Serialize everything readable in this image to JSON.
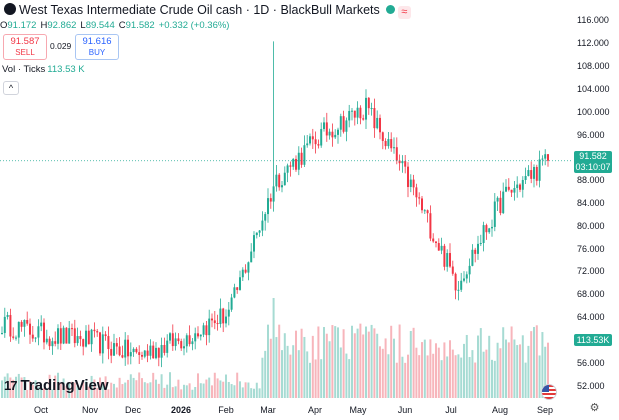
{
  "header": {
    "title": "West Texas Intermediate Crude Oil cash · 1D · BlackBull Markets",
    "wave_icon": "≈"
  },
  "ohlc": {
    "o_label": "O",
    "o": "91.172",
    "h_label": "H",
    "h": "92.862",
    "l_label": "L",
    "l": "89.544",
    "c_label": "C",
    "c": "91.582",
    "change": "+0.332 (+0.36%)"
  },
  "trade": {
    "sell_price": "91.587",
    "sell_label": "SELL",
    "spread": "0.029",
    "buy_price": "91.616",
    "buy_label": "BUY"
  },
  "volume": {
    "label": "Vol · Ticks",
    "value": "113.53 K"
  },
  "collapse_label": "^",
  "price_tag": {
    "price": "91.582",
    "countdown": "03:10:07"
  },
  "vol_tag": "113.53K",
  "brand": {
    "mark": "17",
    "name": "TradingView"
  },
  "settings_icon": "⚙",
  "colors": {
    "up": "#22ab94",
    "down": "#f23645",
    "up_vol": "#a6dbd3",
    "down_vol": "#f7b5bb"
  },
  "chart_data": {
    "type": "candlestick",
    "y_ticks": [
      "116.000",
      "112.000",
      "108.000",
      "104.000",
      "100.000",
      "96.000",
      "92.000",
      "88.000",
      "84.000",
      "80.000",
      "76.000",
      "72.000",
      "68.000",
      "64.000",
      "60.000",
      "56.000",
      "52.000"
    ],
    "ylim": [
      50,
      118
    ],
    "x_labels": [
      "Oct",
      "Nov",
      "Dec",
      "2026",
      "Feb",
      "Mar",
      "Apr",
      "May",
      "Jun",
      "Jul",
      "Aug",
      "Sep"
    ],
    "x_bold": [
      "2026"
    ],
    "last_price": 91.582,
    "series_close_keypoints": [
      {
        "month": "Sep",
        "close": 63.0
      },
      {
        "month": "Oct",
        "close": 61.0
      },
      {
        "month": "Nov",
        "close": 60.0
      },
      {
        "month": "Dec",
        "close": 57.5
      },
      {
        "month": "2026",
        "close": 60.5
      },
      {
        "month": "Feb",
        "close": 65.0
      },
      {
        "month": "Mar",
        "close": 88.0
      },
      {
        "month": "Apr",
        "close": 96.0
      },
      {
        "month": "May",
        "close": 101.0
      },
      {
        "month": "Jun",
        "close": 87.0
      },
      {
        "month": "Jul",
        "close": 70.0
      },
      {
        "month": "Aug",
        "close": 85.0
      },
      {
        "month": "Sep",
        "close": 91.582
      }
    ],
    "range_high": 112.5,
    "range_low": 55.0
  }
}
